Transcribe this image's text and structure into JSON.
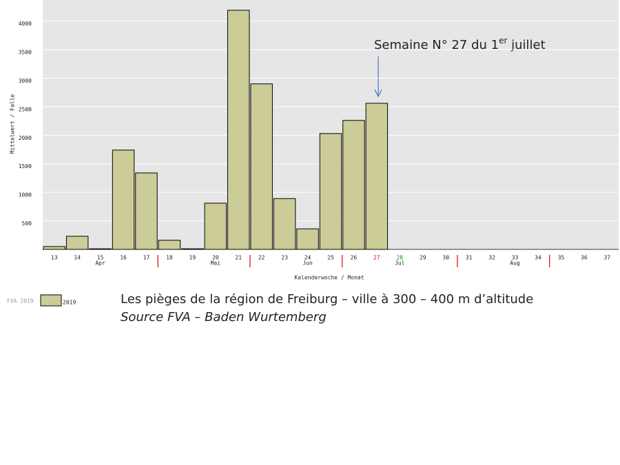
{
  "chart_data": {
    "type": "bar",
    "categories": [
      "13",
      "14",
      "15",
      "16",
      "17",
      "18",
      "19",
      "20",
      "21",
      "22",
      "23",
      "24",
      "25",
      "26",
      "27",
      "28",
      "29",
      "30",
      "31",
      "32",
      "33",
      "34",
      "35",
      "36",
      "37"
    ],
    "series": [
      {
        "name": "2019",
        "color": "#cccc99",
        "values": [
          50,
          230,
          10,
          1740,
          1340,
          160,
          10,
          810,
          4190,
          2900,
          890,
          360,
          2030,
          2260,
          2560,
          null,
          null,
          null,
          null,
          null,
          null,
          null,
          null,
          null,
          null
        ]
      }
    ],
    "months": [
      "Apr",
      "Mai",
      "Jun",
      "Jul",
      "Aug"
    ],
    "ylim": [
      0,
      4370
    ],
    "yticks": [
      500,
      1000,
      1500,
      2000,
      2500,
      3000,
      3500,
      4000
    ],
    "grid": true,
    "ylabel": "Mittelwert / Falle",
    "xlabel": "Kalenderwoche / Monat",
    "legend_title": "FVA 2019",
    "label_colors": {
      "27": "#e00000",
      "28": "#00a000"
    },
    "annotation": [
      "Semaine N° 27 du 1",
      "er",
      " juillet"
    ],
    "caption": [
      "Les pièges de la région de Freiburg – ville à 300 – 400 m d’altitude",
      "Source FVA – Baden Wurtemberg"
    ]
  }
}
